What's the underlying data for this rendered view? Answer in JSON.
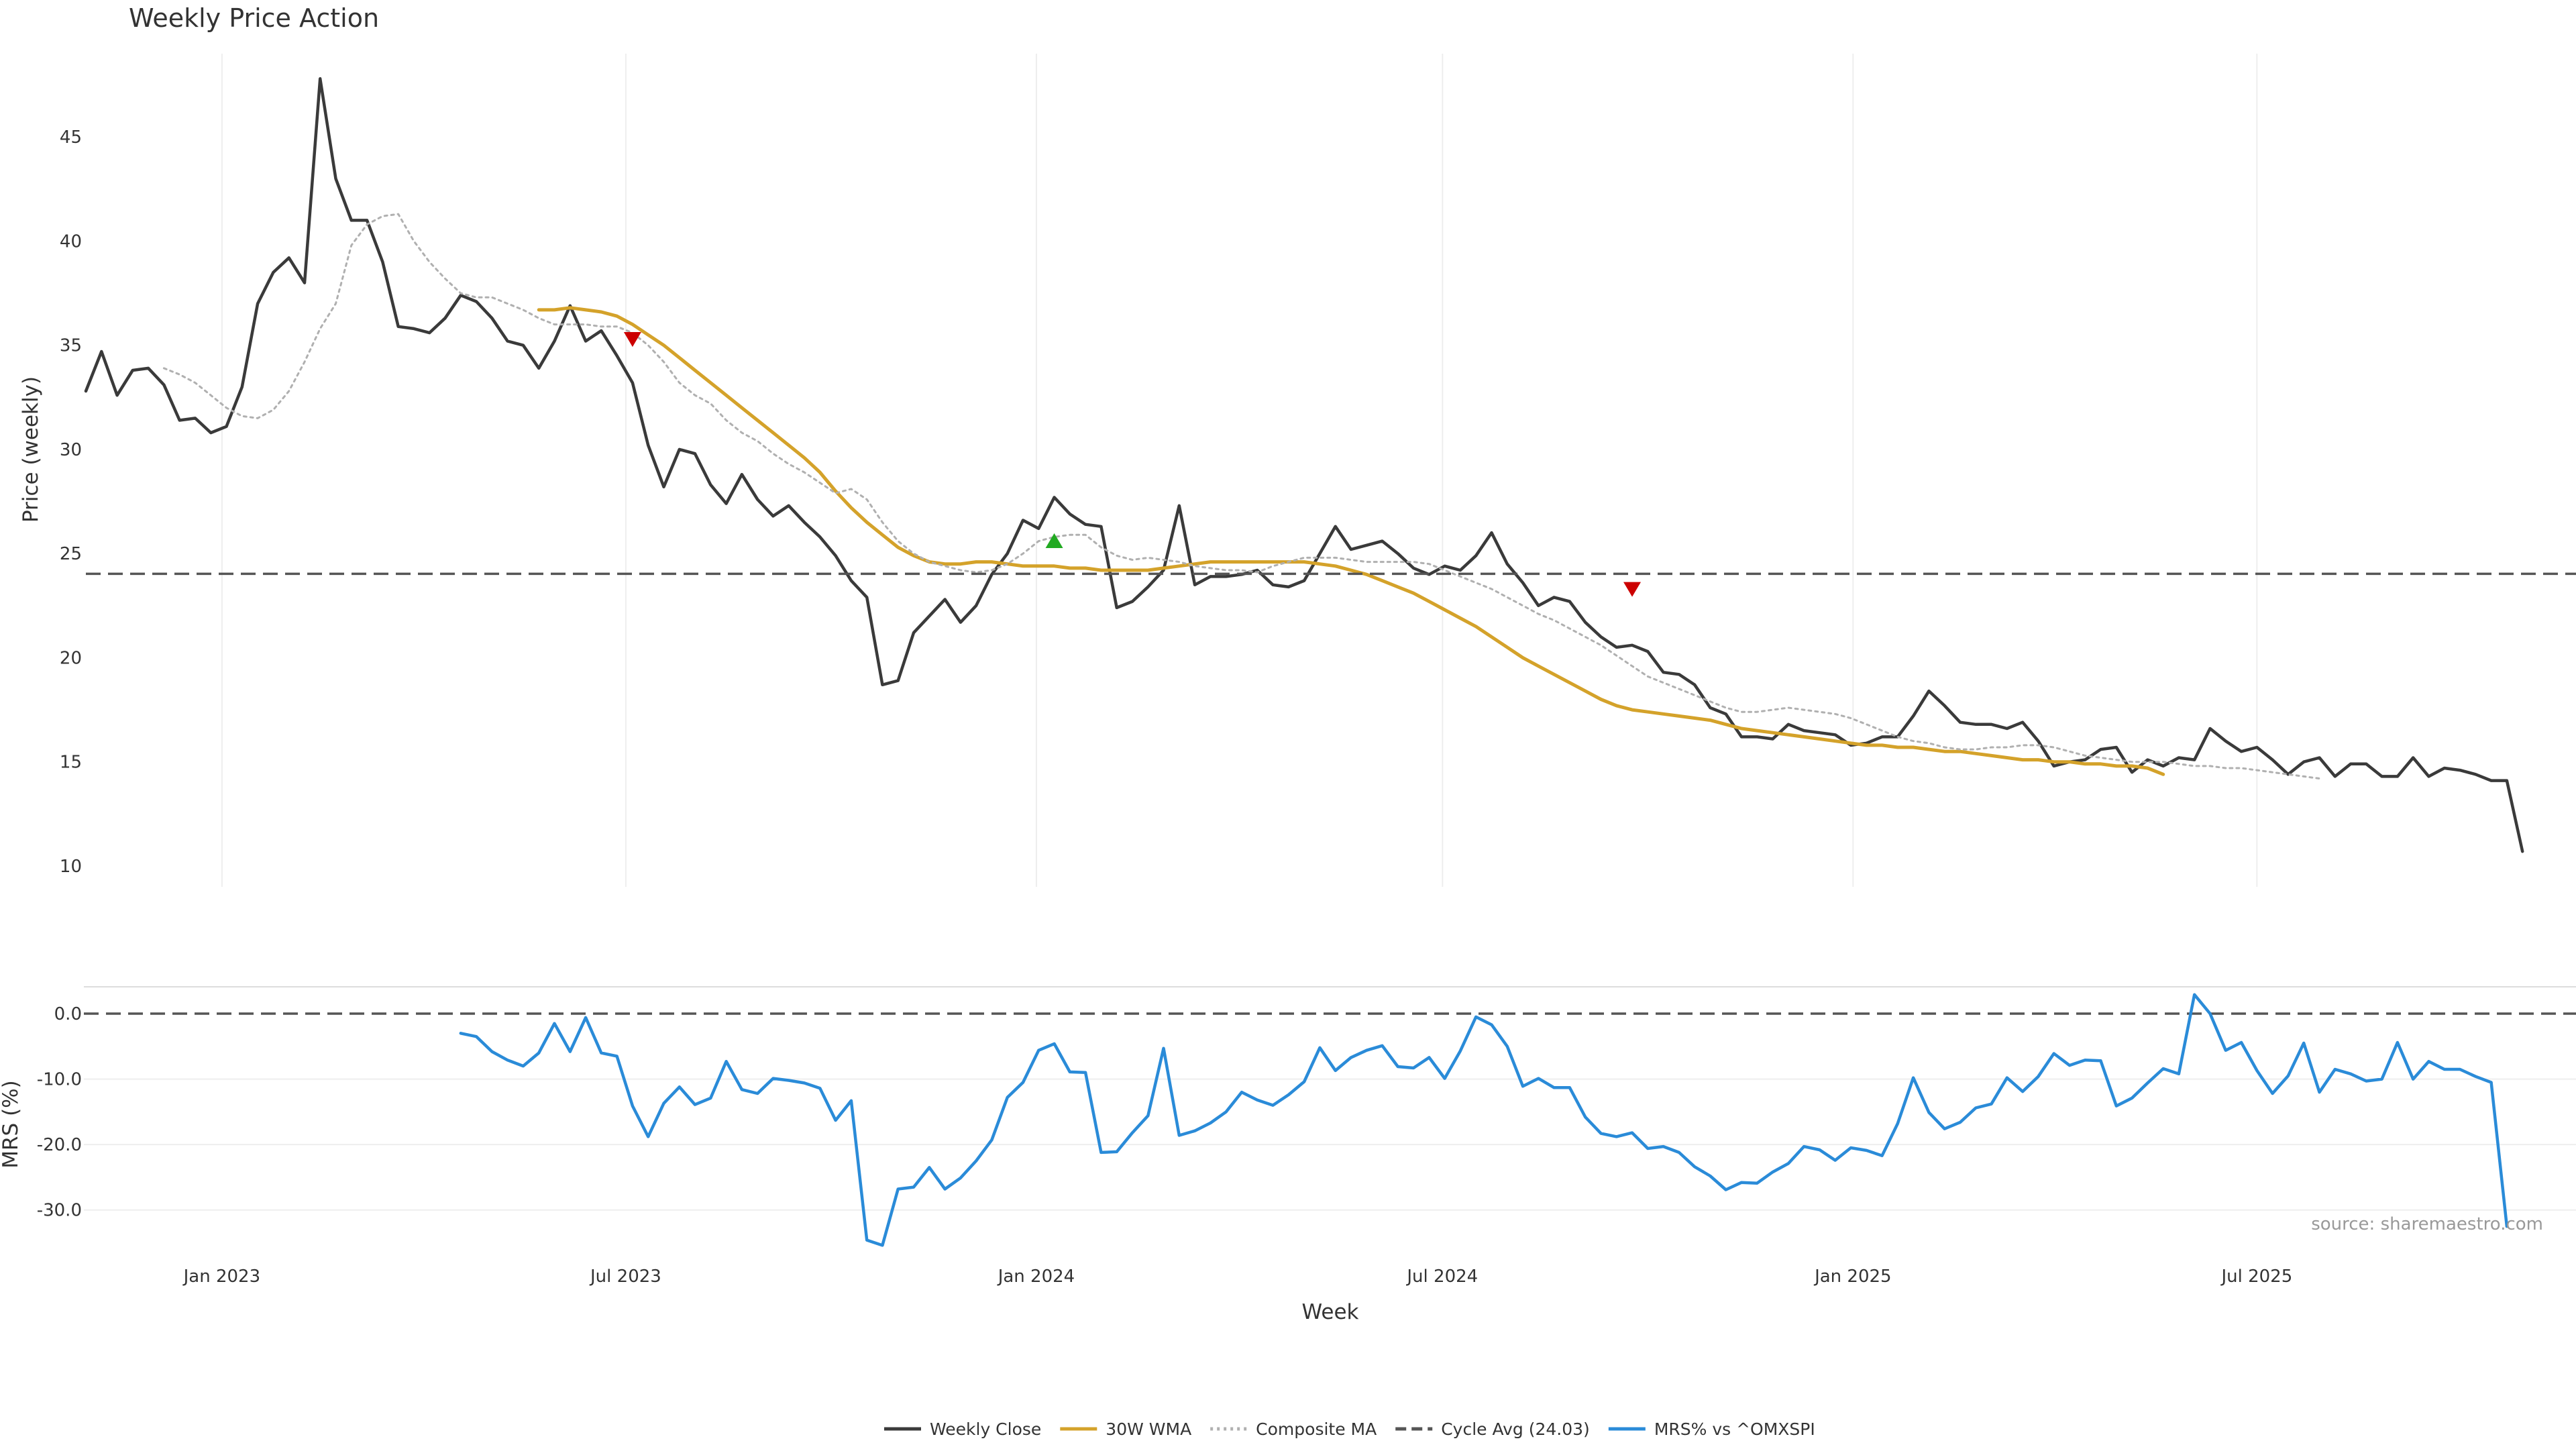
{
  "chart_data": [
    {
      "type": "line",
      "title": "Weekly Price Action",
      "xlabel": "",
      "ylabel": "Price (weekly)",
      "ylim": [
        9,
        49
      ],
      "yticks": [
        10,
        15,
        20,
        25,
        30,
        35,
        40,
        45
      ],
      "x_start": "2022-11-01",
      "x_end": "2025-11-21",
      "x_step_days": 7,
      "grid": "vertical",
      "series": [
        {
          "name": "Weekly Close",
          "color": "#3a3a3a",
          "style": "solid",
          "start": "2022-11-01",
          "values": [
            32.8,
            34.7,
            32.6,
            33.8,
            33.9,
            33.1,
            31.4,
            31.5,
            30.8,
            31.1,
            33.0,
            37.0,
            38.5,
            39.2,
            38.0,
            47.8,
            43.0,
            41.0,
            41.0,
            39.0,
            35.9,
            35.8,
            35.6,
            36.3,
            37.4,
            37.1,
            36.3,
            35.2,
            35.0,
            33.9,
            35.2,
            36.9,
            35.2,
            35.7,
            34.5,
            33.2,
            30.2,
            28.2,
            30.0,
            29.8,
            28.3,
            27.4,
            28.8,
            27.6,
            26.8,
            27.3,
            26.5,
            25.8,
            24.9,
            23.7,
            22.9,
            18.7,
            18.9,
            21.2,
            22.0,
            22.8,
            21.7,
            22.5,
            24.0,
            25.0,
            26.6,
            26.2,
            27.7,
            26.9,
            26.4,
            26.3,
            22.4,
            22.7,
            23.4,
            24.2,
            27.3,
            23.5,
            23.9,
            23.9,
            24.0,
            24.2,
            23.5,
            23.4,
            23.7,
            25.0,
            26.3,
            25.2,
            25.4,
            25.6,
            25.0,
            24.3,
            24.0,
            24.4,
            24.2,
            24.9,
            26.0,
            24.5,
            23.6,
            22.5,
            22.9,
            22.7,
            21.7,
            21.0,
            20.5,
            20.6,
            20.3,
            19.3,
            19.2,
            18.7,
            17.6,
            17.3,
            16.2,
            16.2,
            16.1,
            16.8,
            16.5,
            16.4,
            16.3,
            15.8,
            15.9,
            16.2,
            16.2,
            17.2,
            18.4,
            17.7,
            16.9,
            16.8,
            16.8,
            16.6,
            16.9,
            16.0,
            14.8,
            15.0,
            15.1,
            15.6,
            15.7,
            14.5,
            15.1,
            14.8,
            15.2,
            15.1,
            16.6,
            16.0,
            15.5,
            15.7,
            15.1,
            14.4,
            15.0,
            15.2,
            14.3,
            14.9,
            14.9,
            14.3,
            14.3,
            15.2,
            14.3,
            14.7,
            14.6,
            14.4,
            14.1,
            14.1,
            10.7
          ]
        },
        {
          "name": "30W WMA",
          "color": "#d4a22a",
          "style": "solid",
          "start": "2023-05-23",
          "values": [
            36.7,
            36.7,
            36.8,
            36.7,
            36.6,
            36.4,
            36.0,
            35.5,
            35.0,
            34.4,
            33.8,
            33.2,
            32.6,
            32.0,
            31.4,
            30.8,
            30.2,
            29.6,
            28.9,
            28.0,
            27.2,
            26.5,
            25.9,
            25.3,
            24.9,
            24.6,
            24.5,
            24.5,
            24.6,
            24.6,
            24.5,
            24.4,
            24.4,
            24.4,
            24.3,
            24.3,
            24.2,
            24.2,
            24.2,
            24.2,
            24.3,
            24.4,
            24.5,
            24.6,
            24.6,
            24.6,
            24.6,
            24.6,
            24.6,
            24.6,
            24.5,
            24.4,
            24.2,
            24.0,
            23.7,
            23.4,
            23.1,
            22.7,
            22.3,
            21.9,
            21.5,
            21.0,
            20.5,
            20.0,
            19.6,
            19.2,
            18.8,
            18.4,
            18.0,
            17.7,
            17.5,
            17.4,
            17.3,
            17.2,
            17.1,
            17.0,
            16.8,
            16.6,
            16.5,
            16.4,
            16.3,
            16.2,
            16.1,
            16.0,
            15.9,
            15.8,
            15.8,
            15.7,
            15.7,
            15.6,
            15.5,
            15.5,
            15.4,
            15.3,
            15.2,
            15.1,
            15.1,
            15.0,
            15.0,
            14.9,
            14.9,
            14.8,
            14.8,
            14.7,
            14.4
          ]
        },
        {
          "name": "Composite MA",
          "color": "#b0b0b0",
          "style": "dotted",
          "start": "2022-12-06",
          "values": [
            33.9,
            33.6,
            33.2,
            32.6,
            32.0,
            31.6,
            31.5,
            31.9,
            32.8,
            34.2,
            35.8,
            37.0,
            39.8,
            40.8,
            41.2,
            41.3,
            40.0,
            39.0,
            38.2,
            37.5,
            37.3,
            37.3,
            37.0,
            36.7,
            36.3,
            36.0,
            36.0,
            36.0,
            35.9,
            35.9,
            35.6,
            35.0,
            34.2,
            33.2,
            32.6,
            32.2,
            31.4,
            30.8,
            30.4,
            29.8,
            29.3,
            28.9,
            28.4,
            27.9,
            28.1,
            27.6,
            26.5,
            25.6,
            25.0,
            24.6,
            24.4,
            24.2,
            24.1,
            24.2,
            24.5,
            25.0,
            25.6,
            25.8,
            25.9,
            25.9,
            25.3,
            24.9,
            24.7,
            24.8,
            24.7,
            24.6,
            24.4,
            24.3,
            24.2,
            24.2,
            24.1,
            24.4,
            24.6,
            24.8,
            24.8,
            24.8,
            24.7,
            24.6,
            24.6,
            24.6,
            24.6,
            24.5,
            24.2,
            23.9,
            23.6,
            23.3,
            22.9,
            22.5,
            22.1,
            21.8,
            21.4,
            21.0,
            20.6,
            20.1,
            19.6,
            19.1,
            18.8,
            18.5,
            18.2,
            17.9,
            17.6,
            17.4,
            17.4,
            17.5,
            17.6,
            17.5,
            17.4,
            17.3,
            17.1,
            16.8,
            16.5,
            16.2,
            16.0,
            15.9,
            15.7,
            15.6,
            15.6,
            15.7,
            15.7,
            15.8,
            15.8,
            15.7,
            15.5,
            15.3,
            15.2,
            15.1,
            15.0,
            15.0,
            15.0,
            14.9,
            14.8,
            14.8,
            14.7,
            14.7,
            14.6,
            14.5,
            14.4,
            14.3,
            14.2
          ]
        },
        {
          "name": "Cycle Avg (24.03)",
          "color": "#555555",
          "style": "dashed",
          "constant": 24.03
        }
      ],
      "markers": [
        {
          "type": "sell",
          "date": "2023-07-04",
          "value": 35.3,
          "color": "#cc0000"
        },
        {
          "type": "buy",
          "date": "2024-01-09",
          "value": 25.6,
          "color": "#22aa22"
        },
        {
          "type": "sell",
          "date": "2024-09-24",
          "value": 23.3,
          "color": "#cc0000"
        }
      ]
    },
    {
      "type": "line",
      "xlabel": "Week",
      "ylabel": "MRS (%)",
      "ylim": [
        -37,
        4
      ],
      "yticks": [
        0.0,
        -10.0,
        -20.0,
        -30.0
      ],
      "ytick_labels": [
        "0.0",
        "-10.0",
        "-20.0",
        "-30.0"
      ],
      "xticks": [
        "2023-01-01",
        "2023-07-01",
        "2024-01-01",
        "2024-07-01",
        "2025-01-01",
        "2025-07-01"
      ],
      "xtick_labels": [
        "Jan 2023",
        "Jul 2023",
        "Jan 2024",
        "Jul 2024",
        "Jan 2025",
        "Jul 2025"
      ],
      "grid": "horizontal",
      "reference_line": {
        "value": 0,
        "style": "dashed",
        "color": "#555555"
      },
      "series": [
        {
          "name": "MRS% vs ^OMXSPI",
          "color": "#2a8bd8",
          "style": "solid",
          "start": "2023-04-18",
          "values": [
            -3.0,
            -3.5,
            -5.8,
            -7.1,
            -8.0,
            -6.0,
            -1.5,
            -5.8,
            -0.6,
            -6.0,
            -6.5,
            -14.1,
            -18.8,
            -13.7,
            -11.2,
            -13.9,
            -12.9,
            -7.3,
            -11.6,
            -12.2,
            -9.9,
            -10.2,
            -10.6,
            -11.4,
            -16.3,
            -13.3,
            -34.6,
            -35.4,
            -26.8,
            -26.5,
            -23.5,
            -26.8,
            -25.1,
            -22.5,
            -19.3,
            -12.8,
            -10.5,
            -5.6,
            -4.6,
            -8.9,
            -9.0,
            -21.2,
            -21.1,
            -18.2,
            -15.6,
            -5.3,
            -18.6,
            -17.9,
            -16.7,
            -15.0,
            -12.0,
            -13.2,
            -14.0,
            -12.4,
            -10.4,
            -5.2,
            -8.7,
            -6.7,
            -5.6,
            -4.9,
            -8.1,
            -8.3,
            -6.7,
            -9.9,
            -5.7,
            -0.5,
            -1.7,
            -5.0,
            -11.1,
            -9.9,
            -11.3,
            -11.3,
            -15.8,
            -18.3,
            -18.8,
            -18.2,
            -20.6,
            -20.3,
            -21.2,
            -23.4,
            -24.8,
            -26.9,
            -25.8,
            -25.9,
            -24.2,
            -22.9,
            -20.3,
            -20.8,
            -22.4,
            -20.5,
            -20.9,
            -21.7,
            -16.8,
            -9.8,
            -15.1,
            -17.6,
            -16.6,
            -14.4,
            -13.8,
            -9.8,
            -11.9,
            -9.6,
            -6.1,
            -7.9,
            -7.1,
            -7.2,
            -14.1,
            -12.9,
            -10.6,
            -8.4,
            -9.2,
            2.9,
            0.0,
            -5.6,
            -4.4,
            -8.7,
            -12.2,
            -9.5,
            -4.5,
            -12.0,
            -8.5,
            -9.2,
            -10.3,
            -10.0,
            -4.4,
            -10.0,
            -7.3,
            -8.5,
            -8.5,
            -9.6,
            -10.5,
            -32.5
          ]
        }
      ]
    }
  ],
  "legend": [
    {
      "label": "Weekly Close",
      "color": "#3a3a3a",
      "style": "solid"
    },
    {
      "label": "30W WMA",
      "color": "#d4a22a",
      "style": "solid"
    },
    {
      "label": "Composite MA",
      "color": "#b0b0b0",
      "style": "dotted"
    },
    {
      "label": "Cycle Avg (24.03)",
      "color": "#555555",
      "style": "dashed"
    },
    {
      "label": "MRS% vs ^OMXSPI",
      "color": "#2a8bd8",
      "style": "solid"
    }
  ],
  "source_text": "source: sharemaestro.com"
}
